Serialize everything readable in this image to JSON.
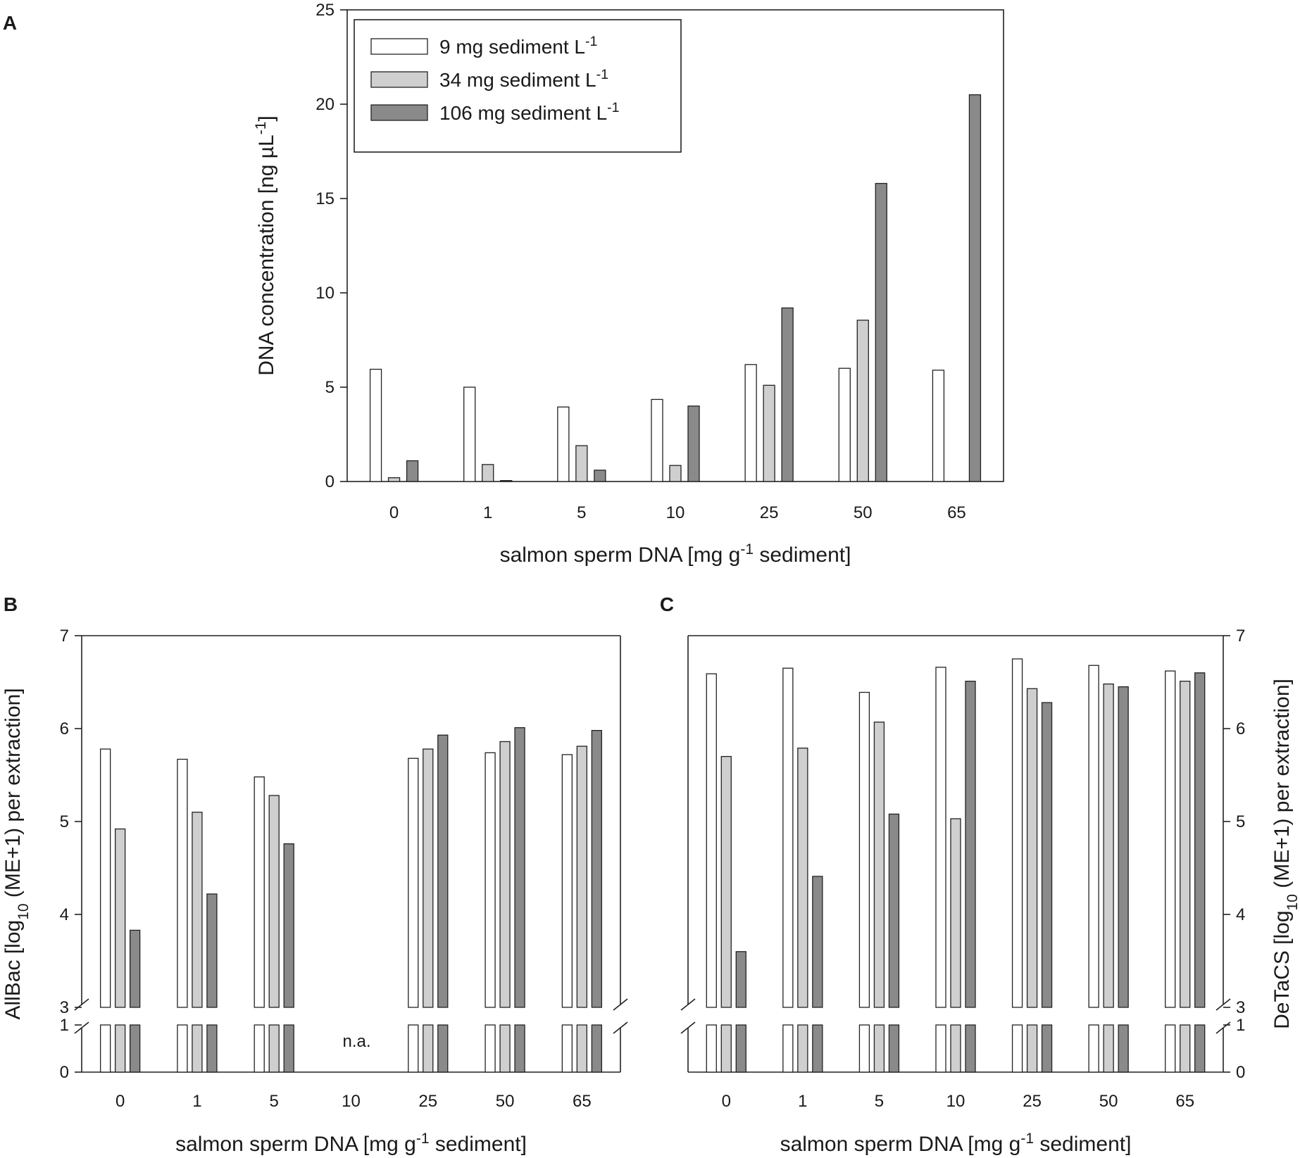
{
  "series_styles": [
    {
      "name": "9 mg sediment L",
      "color": "#ffffff"
    },
    {
      "name": "34 mg sediment L",
      "color": "#cfcfcf"
    },
    {
      "name": "106 mg sediment L",
      "color": "#8a8a8a"
    }
  ],
  "chart_data": [
    {
      "panel": "A",
      "type": "bar",
      "categories": [
        "0",
        "1",
        "5",
        "10",
        "25",
        "50",
        "65"
      ],
      "xlabel": "salmon sperm DNA [mg g-1 sediment]",
      "xlabel_main": "salmon sperm DNA [mg g",
      "xlabel_sup": "-1",
      "xlabel_tail": " sediment]",
      "ylabel": "DNA concentration [ng µL-1]",
      "ylabel_main": "DNA concentration [ng µL",
      "ylabel_sup": "-1",
      "ylabel_tail": "]",
      "ylim": [
        0,
        25
      ],
      "yticks": [
        "0",
        "5",
        "10",
        "15",
        "20",
        "25"
      ],
      "legend": {
        "position": "top-left",
        "entries": [
          {
            "main": "9 mg sediment L",
            "sup": "-1"
          },
          {
            "main": "34 mg sediment L",
            "sup": "-1"
          },
          {
            "main": "106 mg sediment L",
            "sup": "-1"
          }
        ]
      },
      "series": [
        {
          "name": "9 mg sediment L-1",
          "values": [
            5.95,
            5.0,
            3.95,
            4.35,
            6.2,
            6.0,
            5.9
          ]
        },
        {
          "name": "34 mg sediment L-1",
          "values": [
            0.2,
            0.9,
            1.9,
            0.85,
            5.1,
            8.55,
            null
          ]
        },
        {
          "name": "106 mg sediment L-1",
          "values": [
            1.1,
            0.05,
            0.6,
            4.0,
            9.2,
            15.8,
            20.5
          ]
        }
      ]
    },
    {
      "panel": "B",
      "type": "bar",
      "categories": [
        "0",
        "1",
        "5",
        "10",
        "25",
        "50",
        "65"
      ],
      "xlabel": "salmon sperm DNA [mg g-1 sediment]",
      "xlabel_main": "salmon sperm DNA [mg g",
      "xlabel_sup": "-1",
      "xlabel_tail": " sediment]",
      "ylabel": "AllBac [log10 (ME+1) per extraction]",
      "ylabel_main": "AllBac [log",
      "ylabel_sub": "10",
      "ylabel_tail": " (ME+1) per extraction]",
      "yaxis_side": "left",
      "broken_axis": {
        "lower": [
          0,
          1
        ],
        "upper": [
          3,
          7
        ]
      },
      "yticks_lower": [
        "0",
        "1"
      ],
      "yticks_upper": [
        "3",
        "4",
        "5",
        "6",
        "7"
      ],
      "annotation": {
        "text": "n.a.",
        "category": "10"
      },
      "series": [
        {
          "name": "9 mg sediment L-1",
          "values": [
            5.78,
            5.67,
            5.48,
            null,
            5.68,
            5.74,
            5.72
          ]
        },
        {
          "name": "34 mg sediment L-1",
          "values": [
            4.92,
            5.1,
            5.28,
            null,
            5.78,
            5.86,
            5.81
          ]
        },
        {
          "name": "106 mg sediment L-1",
          "values": [
            3.83,
            4.22,
            4.76,
            null,
            5.93,
            6.01,
            5.98
          ]
        }
      ]
    },
    {
      "panel": "C",
      "type": "bar",
      "categories": [
        "0",
        "1",
        "5",
        "10",
        "25",
        "50",
        "65"
      ],
      "xlabel": "salmon sperm DNA [mg g-1 sediment]",
      "xlabel_main": "salmon sperm DNA [mg g",
      "xlabel_sup": "-1",
      "xlabel_tail": " sediment]",
      "ylabel": "DeTaCS [log10 (ME+1) per extraction]",
      "ylabel_main": "DeTaCS [log",
      "ylabel_sub": "10",
      "ylabel_tail": " (ME+1) per extraction]",
      "yaxis_side": "right",
      "broken_axis": {
        "lower": [
          0,
          1
        ],
        "upper": [
          3,
          7
        ]
      },
      "yticks_lower": [
        "0",
        "1"
      ],
      "yticks_upper": [
        "3",
        "4",
        "5",
        "6",
        "7"
      ],
      "series": [
        {
          "name": "9 mg sediment L-1",
          "values": [
            6.59,
            6.65,
            6.39,
            6.66,
            6.75,
            6.68,
            6.62
          ]
        },
        {
          "name": "34 mg sediment L-1",
          "values": [
            5.7,
            5.79,
            6.07,
            5.03,
            6.43,
            6.48,
            6.51
          ]
        },
        {
          "name": "106 mg sediment L-1",
          "values": [
            3.6,
            4.41,
            5.08,
            6.51,
            6.28,
            6.45,
            6.6
          ]
        }
      ]
    }
  ]
}
